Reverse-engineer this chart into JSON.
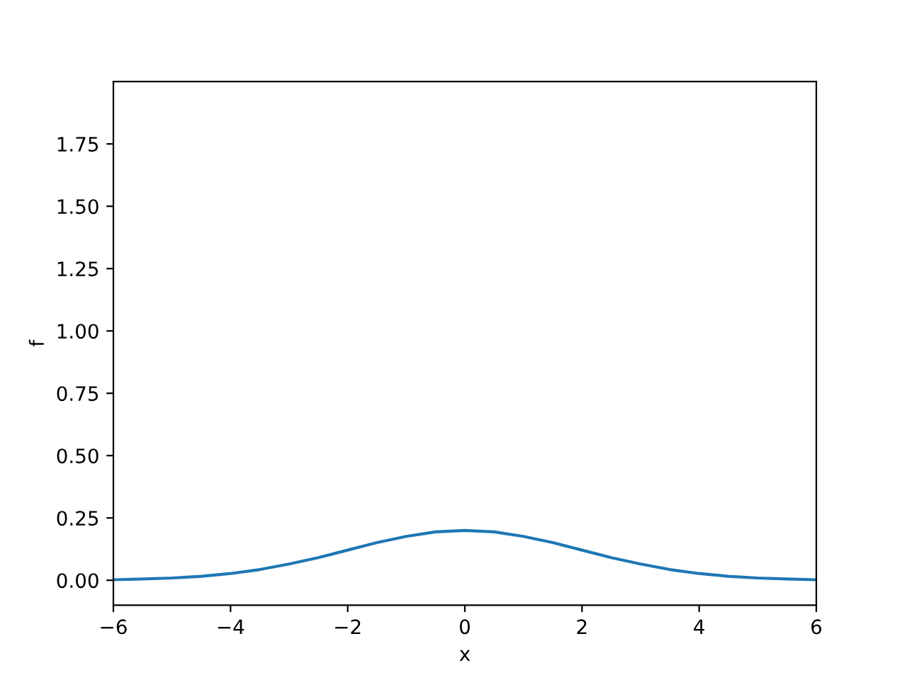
{
  "chart_data": {
    "type": "line",
    "xlabel": "x",
    "ylabel": "f",
    "series": [
      {
        "color": "#1f77b4",
        "x": [
          -6,
          -5.5,
          -5,
          -4.5,
          -4,
          -3.5,
          -3,
          -2.5,
          -2,
          -1.5,
          -1,
          -0.5,
          0,
          0.5,
          1,
          1.5,
          2,
          2.5,
          3,
          3.5,
          4,
          4.5,
          5,
          5.5,
          6
        ],
        "values": [
          0.002,
          0.005,
          0.009,
          0.016,
          0.027,
          0.043,
          0.065,
          0.091,
          0.121,
          0.151,
          0.176,
          0.194,
          0.2,
          0.194,
          0.176,
          0.151,
          0.121,
          0.091,
          0.065,
          0.043,
          0.027,
          0.016,
          0.009,
          0.005,
          0.002
        ]
      }
    ],
    "xlim": [
      -6,
      6
    ],
    "xticks": [
      {
        "value": -6,
        "label": "−6"
      },
      {
        "value": -4,
        "label": "−4"
      },
      {
        "value": -2,
        "label": "−2"
      },
      0,
      2,
      4,
      6
    ],
    "ylim": [
      -0.1,
      2.0
    ],
    "yticks": [
      {
        "value": 0,
        "label": "0.00"
      },
      {
        "value": 0.25,
        "label": "0.25"
      },
      {
        "value": 0.5,
        "label": "0.50"
      },
      {
        "value": 0.75,
        "label": "0.75"
      },
      {
        "value": 1,
        "label": "1.00"
      },
      {
        "value": 1.25,
        "label": "1.25"
      },
      {
        "value": 1.5,
        "label": "1.50"
      },
      {
        "value": 1.75,
        "label": "1.75"
      }
    ],
    "grid": false,
    "legend": false,
    "marker": "none",
    "line_style": "solid"
  }
}
